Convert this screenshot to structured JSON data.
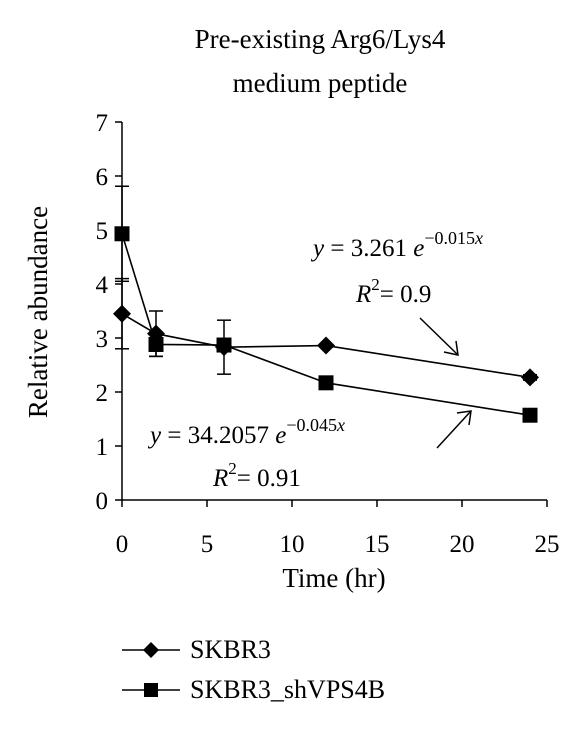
{
  "chart_data": {
    "type": "line",
    "title_line1": "Pre-existing Arg6/Lys4",
    "title_line2": "medium peptide",
    "xlabel": "Time (hr)",
    "ylabel": "Relative abundance",
    "xlim": [
      0,
      25
    ],
    "ylim": [
      0,
      7
    ],
    "xticks": [
      0,
      5,
      10,
      15,
      20,
      25
    ],
    "yticks": [
      0,
      1,
      2,
      3,
      4,
      5,
      6,
      7
    ],
    "grid": false,
    "legend_position": "bottom",
    "series": [
      {
        "name": "SKBR3",
        "marker": "diamond",
        "x": [
          0,
          2,
          6,
          12,
          24
        ],
        "y": [
          3.45,
          3.08,
          2.83,
          2.86,
          2.27
        ],
        "err": [
          0.65,
          0.42,
          0.5,
          0,
          0.05
        ]
      },
      {
        "name": "SKBR3_shVPS4B",
        "marker": "square",
        "x": [
          0,
          2,
          6,
          12,
          24
        ],
        "y": [
          4.93,
          2.88,
          2.87,
          2.17,
          1.57
        ],
        "err": [
          0.88,
          0.22,
          0,
          0,
          0
        ]
      }
    ],
    "annotations": {
      "eq1": {
        "y_sym": "y",
        "eq_sign": "=",
        "coef": "3.261",
        "base": "e",
        "exp": "−0.015",
        "exp_var": "x"
      },
      "r1": {
        "r_sym": "R",
        "sup": "2",
        "eq_sign": "=",
        "value": "0.9"
      },
      "eq2": {
        "y_sym": "y",
        "eq_sign": "=",
        "coef": "34.2057",
        "base": "e",
        "exp": "−0.045",
        "exp_var": "x"
      },
      "r2": {
        "r_sym": "R",
        "sup": "2",
        "eq_sign": "=",
        "value": "0.91"
      }
    }
  }
}
